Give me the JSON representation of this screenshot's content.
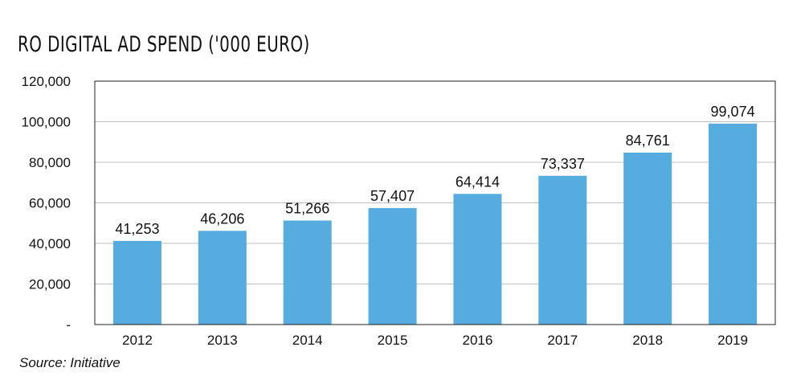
{
  "chart_data": {
    "type": "bar",
    "title": "RO DIGITAL AD SPEND ('000 EURO)",
    "categories": [
      "2012",
      "2013",
      "2014",
      "2015",
      "2016",
      "2017",
      "2018",
      "2019"
    ],
    "values": [
      41253,
      46206,
      51266,
      57407,
      64414,
      73337,
      84761,
      99074
    ],
    "data_labels": [
      "41,253",
      "46,206",
      "51,266",
      "57,407",
      "64,414",
      "73,337",
      "84,761",
      "99,074"
    ],
    "ylim": [
      0,
      120000
    ],
    "yticks": [
      0,
      20000,
      40000,
      60000,
      80000,
      100000,
      120000
    ],
    "ytick_labels": [
      "-",
      "20,000",
      "40,000",
      "60,000",
      "80,000",
      "100,000",
      "120,000"
    ],
    "xlabel": "",
    "ylabel": "",
    "grid": true,
    "bar_color": "#56ABDF",
    "grid_color": "#BFBFBF",
    "source": "Source: Initiative"
  }
}
